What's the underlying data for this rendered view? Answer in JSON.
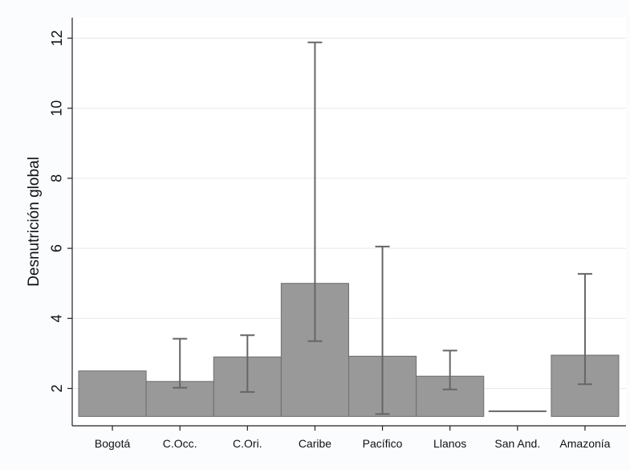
{
  "chart_data": {
    "type": "bar",
    "title": "",
    "xlabel": "",
    "ylabel": "Desnutrición global",
    "ylim": [
      1.2,
      12
    ],
    "yticks": [
      2,
      4,
      6,
      8,
      10,
      12
    ],
    "grid": true,
    "categories": [
      "Bogotá",
      "C.Occ.",
      "C.Ori.",
      "Caribe",
      "Pacífico",
      "Llanos",
      "San And.",
      "Amazonía"
    ],
    "values": [
      2.5,
      2.2,
      2.9,
      5.0,
      2.92,
      2.35,
      1.35,
      2.95
    ],
    "error_low": [
      null,
      2.02,
      1.9,
      3.35,
      1.27,
      1.97,
      null,
      2.12
    ],
    "error_high": [
      null,
      3.42,
      3.52,
      11.88,
      6.05,
      3.08,
      null,
      5.27
    ],
    "colors": {
      "bar": "#999999",
      "bar_edge": "#6e6e6e",
      "error": "#666666",
      "grid": "#e6e9ef",
      "axis": "#222222",
      "background": "#fbfcfe"
    }
  }
}
